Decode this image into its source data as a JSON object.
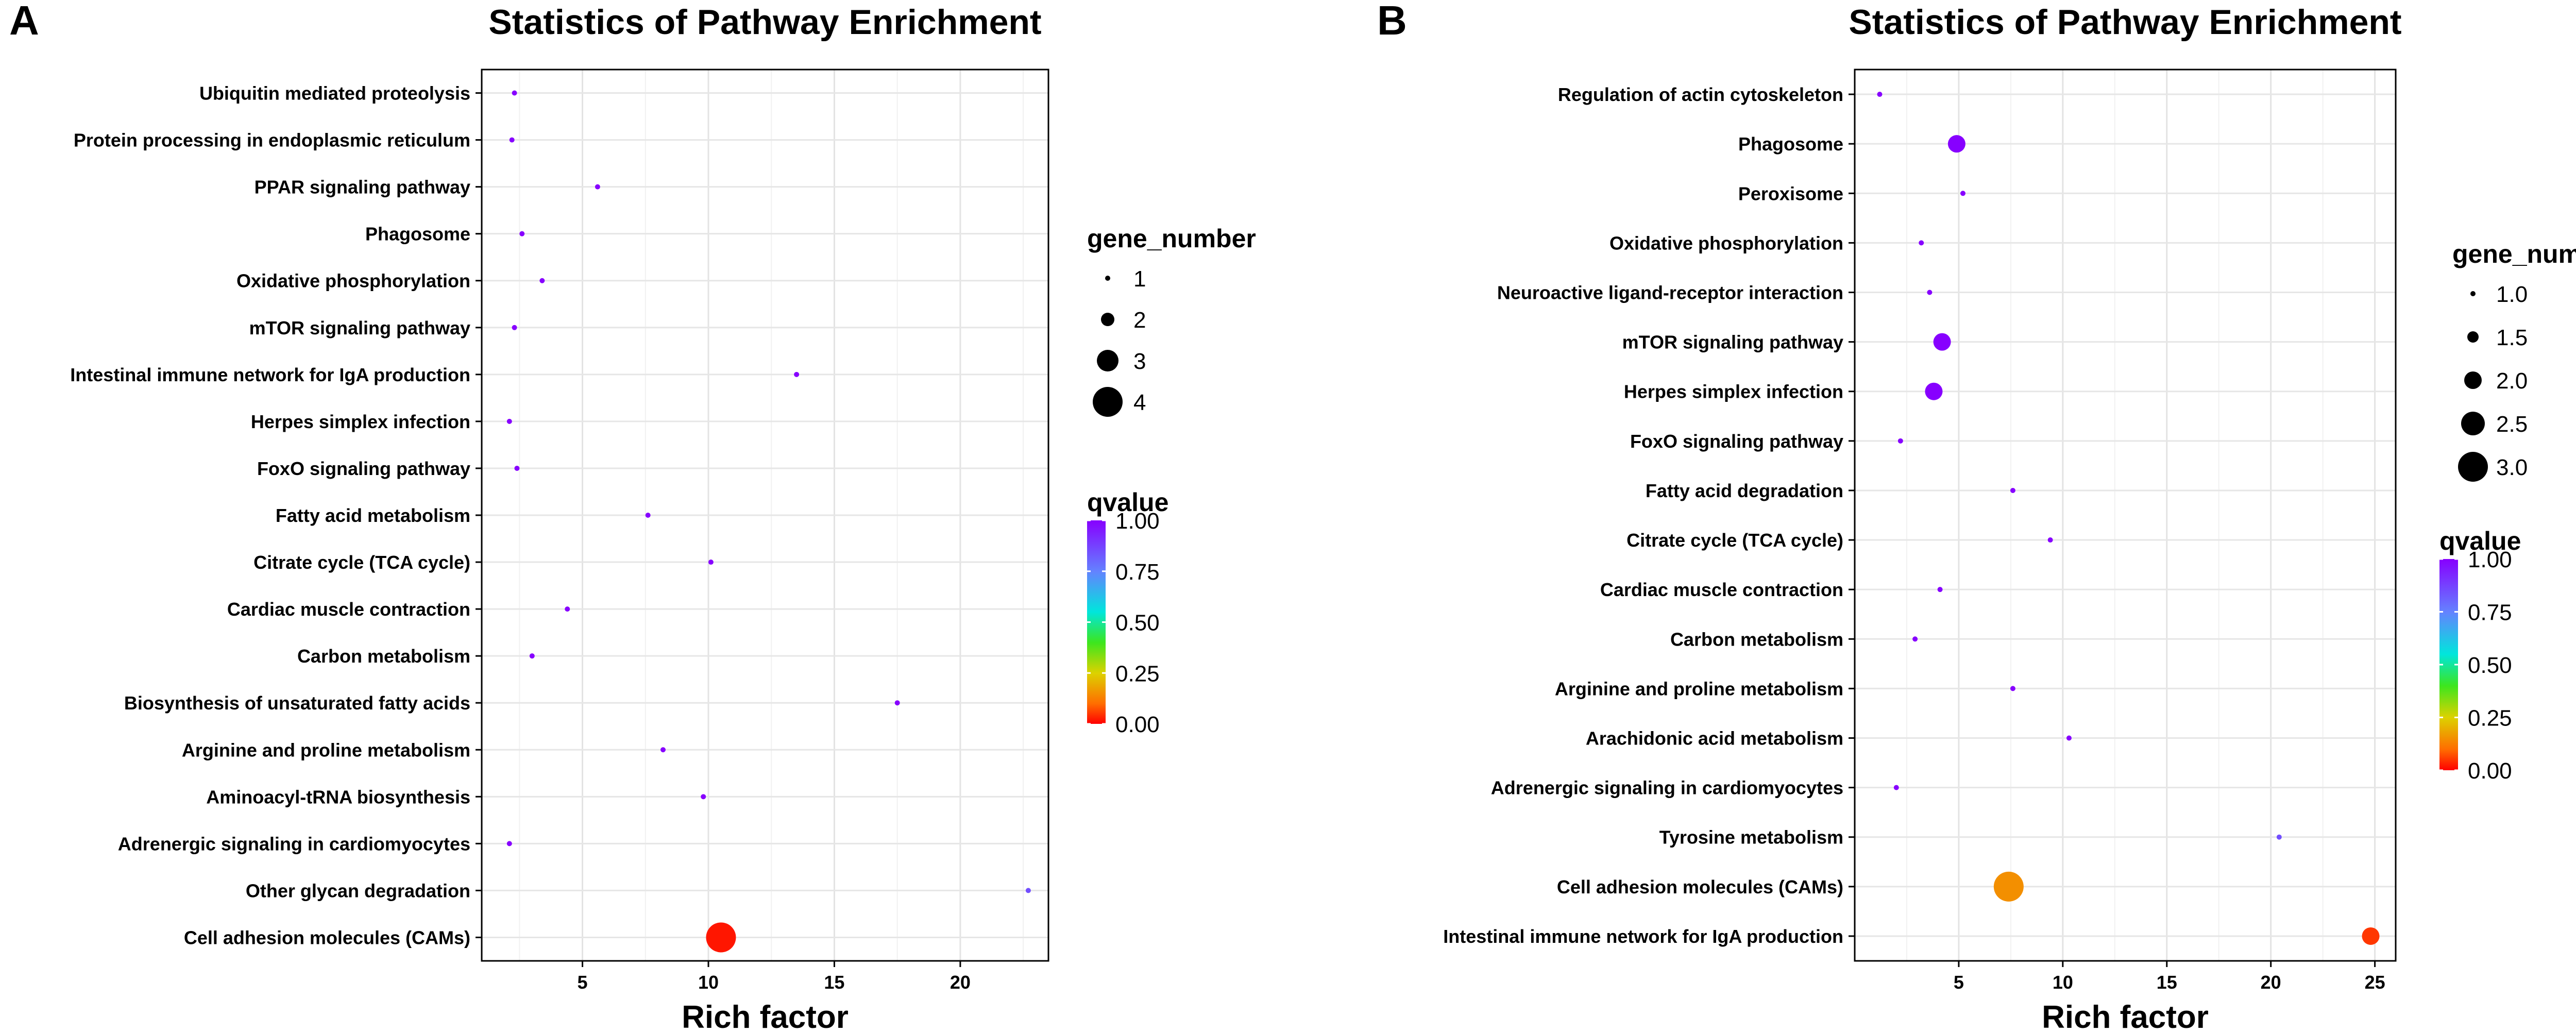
{
  "panels": [
    {
      "label": "A"
    },
    {
      "label": "B"
    }
  ],
  "chart_data": [
    {
      "type": "scatter",
      "title": "Statistics of Pathway Enrichment",
      "xlabel": "Rich factor",
      "ylabel": "",
      "xlim": [
        1.0,
        23.5
      ],
      "xticks": [
        5,
        10,
        15,
        20
      ],
      "grid": true,
      "categories": [
        "Ubiquitin mediated proteolysis",
        "Protein processing in endoplasmic reticulum",
        "PPAR signaling pathway",
        "Phagosome",
        "Oxidative phosphorylation",
        "mTOR signaling pathway",
        "Intestinal immune network for IgA production",
        "Herpes simplex infection",
        "FoxO signaling pathway",
        "Fatty acid metabolism",
        "Citrate cycle (TCA cycle)",
        "Cardiac muscle contraction",
        "Carbon metabolism",
        "Biosynthesis of unsaturated fatty acids",
        "Arginine and proline metabolism",
        "Aminoacyl-tRNA biosynthesis",
        "Adrenergic signaling in cardiomyocytes",
        "Other glycan degradation",
        "Cell adhesion molecules (CAMs)"
      ],
      "points": [
        {
          "pathway": "Ubiquitin mediated proteolysis",
          "rich_factor": 2.3,
          "gene_number": 1,
          "qvalue": 1.0
        },
        {
          "pathway": "Protein processing in endoplasmic reticulum",
          "rich_factor": 2.2,
          "gene_number": 1,
          "qvalue": 1.0
        },
        {
          "pathway": "PPAR signaling pathway",
          "rich_factor": 5.6,
          "gene_number": 1,
          "qvalue": 1.0
        },
        {
          "pathway": "Phagosome",
          "rich_factor": 2.6,
          "gene_number": 1,
          "qvalue": 1.0
        },
        {
          "pathway": "Oxidative phosphorylation",
          "rich_factor": 3.4,
          "gene_number": 1,
          "qvalue": 1.0
        },
        {
          "pathway": "mTOR signaling pathway",
          "rich_factor": 2.3,
          "gene_number": 1,
          "qvalue": 1.0
        },
        {
          "pathway": "Intestinal immune network for IgA production",
          "rich_factor": 13.5,
          "gene_number": 1,
          "qvalue": 1.0
        },
        {
          "pathway": "Herpes simplex infection",
          "rich_factor": 2.1,
          "gene_number": 1,
          "qvalue": 1.0
        },
        {
          "pathway": "FoxO signaling pathway",
          "rich_factor": 2.4,
          "gene_number": 1,
          "qvalue": 1.0
        },
        {
          "pathway": "Fatty acid metabolism",
          "rich_factor": 7.6,
          "gene_number": 1,
          "qvalue": 1.0
        },
        {
          "pathway": "Citrate cycle (TCA cycle)",
          "rich_factor": 10.1,
          "gene_number": 1,
          "qvalue": 1.0
        },
        {
          "pathway": "Cardiac muscle contraction",
          "rich_factor": 4.4,
          "gene_number": 1,
          "qvalue": 1.0
        },
        {
          "pathway": "Carbon metabolism",
          "rich_factor": 3.0,
          "gene_number": 1,
          "qvalue": 1.0
        },
        {
          "pathway": "Biosynthesis of unsaturated fatty acids",
          "rich_factor": 17.5,
          "gene_number": 1,
          "qvalue": 1.0
        },
        {
          "pathway": "Arginine and proline metabolism",
          "rich_factor": 8.2,
          "gene_number": 1,
          "qvalue": 1.0
        },
        {
          "pathway": "Aminoacyl-tRNA biosynthesis",
          "rich_factor": 9.8,
          "gene_number": 1,
          "qvalue": 1.0
        },
        {
          "pathway": "Adrenergic signaling in cardiomyocytes",
          "rich_factor": 2.1,
          "gene_number": 1,
          "qvalue": 1.0
        },
        {
          "pathway": "Other glycan degradation",
          "rich_factor": 22.7,
          "gene_number": 1,
          "qvalue": 0.85
        },
        {
          "pathway": "Cell adhesion molecules (CAMs)",
          "rich_factor": 10.5,
          "gene_number": 4,
          "qvalue": 0.02
        }
      ],
      "size_legend": {
        "title": "gene_number",
        "values": [
          1,
          2,
          3,
          4
        ],
        "labels": [
          "1",
          "2",
          "3",
          "4"
        ]
      },
      "color_legend": {
        "title": "qvalue",
        "min": 0.0,
        "max": 1.0,
        "ticks": [
          "1.00",
          "0.75",
          "0.50",
          "0.25",
          "0.00"
        ]
      }
    },
    {
      "type": "scatter",
      "title": "Statistics of Pathway Enrichment",
      "xlabel": "Rich factor",
      "ylabel": "",
      "xlim": [
        0.0,
        26.0
      ],
      "xticks": [
        5,
        10,
        15,
        20,
        25
      ],
      "grid": true,
      "categories": [
        "Regulation of actin cytoskeleton",
        "Phagosome",
        "Peroxisome",
        "Oxidative phosphorylation",
        "Neuroactive ligand-receptor interaction",
        "mTOR signaling pathway",
        "Herpes simplex infection",
        "FoxO signaling pathway",
        "Fatty acid degradation",
        "Citrate cycle (TCA cycle)",
        "Cardiac muscle contraction",
        "Carbon metabolism",
        "Arginine and proline metabolism",
        "Arachidonic acid metabolism",
        "Adrenergic signaling in cardiomyocytes",
        "Tyrosine metabolism",
        "Cell adhesion molecules (CAMs)",
        "Intestinal immune network for IgA production"
      ],
      "points": [
        {
          "pathway": "Regulation of actin cytoskeleton",
          "rich_factor": 1.2,
          "gene_number": 1.0,
          "qvalue": 1.0
        },
        {
          "pathway": "Phagosome",
          "rich_factor": 4.9,
          "gene_number": 2.0,
          "qvalue": 1.0
        },
        {
          "pathway": "Peroxisome",
          "rich_factor": 5.2,
          "gene_number": 1.0,
          "qvalue": 1.0
        },
        {
          "pathway": "Oxidative phosphorylation",
          "rich_factor": 3.2,
          "gene_number": 1.0,
          "qvalue": 1.0
        },
        {
          "pathway": "Neuroactive ligand-receptor interaction",
          "rich_factor": 3.6,
          "gene_number": 1.0,
          "qvalue": 1.0
        },
        {
          "pathway": "mTOR signaling pathway",
          "rich_factor": 4.2,
          "gene_number": 2.0,
          "qvalue": 1.0
        },
        {
          "pathway": "Herpes simplex infection",
          "rich_factor": 3.8,
          "gene_number": 2.0,
          "qvalue": 1.0
        },
        {
          "pathway": "FoxO signaling pathway",
          "rich_factor": 2.2,
          "gene_number": 1.0,
          "qvalue": 1.0
        },
        {
          "pathway": "Fatty acid degradation",
          "rich_factor": 7.6,
          "gene_number": 1.0,
          "qvalue": 1.0
        },
        {
          "pathway": "Citrate cycle (TCA cycle)",
          "rich_factor": 9.4,
          "gene_number": 1.0,
          "qvalue": 1.0
        },
        {
          "pathway": "Cardiac muscle contraction",
          "rich_factor": 4.1,
          "gene_number": 1.0,
          "qvalue": 1.0
        },
        {
          "pathway": "Carbon metabolism",
          "rich_factor": 2.9,
          "gene_number": 1.0,
          "qvalue": 1.0
        },
        {
          "pathway": "Arginine and proline metabolism",
          "rich_factor": 7.6,
          "gene_number": 1.0,
          "qvalue": 1.0
        },
        {
          "pathway": "Arachidonic acid metabolism",
          "rich_factor": 10.3,
          "gene_number": 1.0,
          "qvalue": 1.0
        },
        {
          "pathway": "Adrenergic signaling in cardiomyocytes",
          "rich_factor": 2.0,
          "gene_number": 1.0,
          "qvalue": 1.0
        },
        {
          "pathway": "Tyrosine metabolism",
          "rich_factor": 20.4,
          "gene_number": 1.0,
          "qvalue": 0.85
        },
        {
          "pathway": "Cell adhesion molecules (CAMs)",
          "rich_factor": 7.4,
          "gene_number": 3.0,
          "qvalue": 0.15
        },
        {
          "pathway": "Intestinal immune network for IgA production",
          "rich_factor": 24.8,
          "gene_number": 2.0,
          "qvalue": 0.05
        }
      ],
      "size_legend": {
        "title": "gene_number",
        "values": [
          1.0,
          1.5,
          2.0,
          2.5,
          3.0
        ],
        "labels": [
          "1.0",
          "1.5",
          "2.0",
          "2.5",
          "3.0"
        ]
      },
      "color_legend": {
        "title": "qvalue",
        "min": 0.0,
        "max": 1.0,
        "ticks": [
          "1.00",
          "0.75",
          "0.50",
          "0.25",
          "0.00"
        ]
      }
    }
  ]
}
